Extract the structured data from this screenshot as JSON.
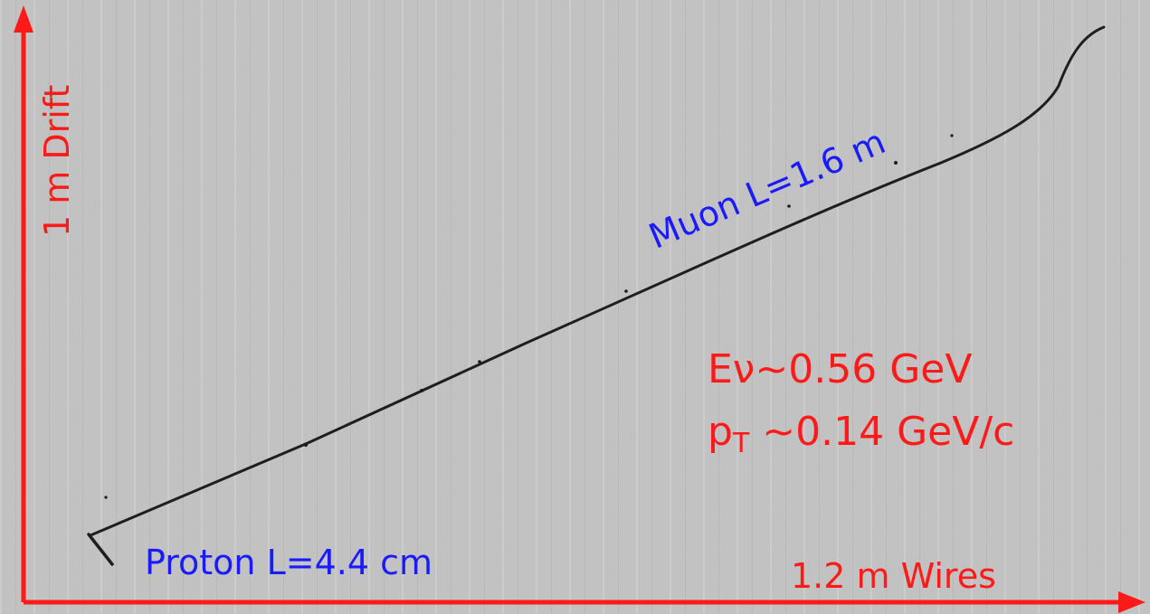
{
  "axes": {
    "vertical_label": "1 m Drift",
    "horizontal_label": "1.2 m Wires"
  },
  "tracks": {
    "muon_label": "Muon L=1.6 m",
    "proton_label": "Proton L=4.4 cm"
  },
  "kinematics": {
    "energy_label": "Eν~0.56 GeV",
    "pt_prefix": "p",
    "pt_subscript": "T",
    "pt_value": " ~0.14 GeV/c"
  },
  "colors": {
    "axis": "#ff1a1a",
    "track_label": "#1a1aff",
    "track": "#1e1e1e",
    "background": "#c4c4c4"
  }
}
